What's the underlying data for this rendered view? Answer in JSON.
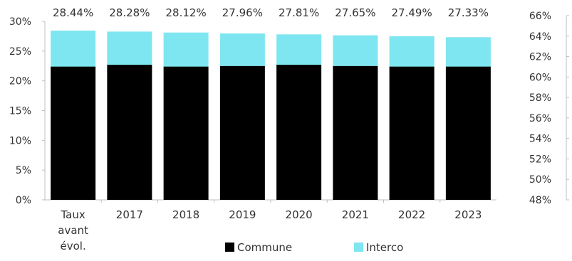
{
  "chart_data": {
    "type": "bar",
    "stacked": true,
    "categories": [
      "Taux avant évol.",
      "2017",
      "2018",
      "2019",
      "2020",
      "2021",
      "2022",
      "2023"
    ],
    "category_lines": [
      [
        "Taux",
        "avant",
        "évol."
      ],
      [
        "2017"
      ],
      [
        "2018"
      ],
      [
        "2019"
      ],
      [
        "2020"
      ],
      [
        "2021"
      ],
      [
        "2022"
      ],
      [
        "2023"
      ]
    ],
    "series": [
      {
        "name": "Commune",
        "color": "#000000",
        "values": [
          22.4,
          22.7,
          22.4,
          22.5,
          22.7,
          22.5,
          22.4,
          22.4
        ]
      },
      {
        "name": "Interco",
        "color": "#7ee6f0",
        "values": [
          6.04,
          5.58,
          5.72,
          5.46,
          5.11,
          5.15,
          5.09,
          4.93
        ]
      }
    ],
    "total_labels": [
      "28.44%",
      "28.28%",
      "28.12%",
      "27.96%",
      "27.81%",
      "27.65%",
      "27.49%",
      "27.33%"
    ],
    "y_left": {
      "min": 0,
      "max": 30,
      "ticks": [
        "0%",
        "5%",
        "10%",
        "15%",
        "20%",
        "25%",
        "30%"
      ]
    },
    "y_right": {
      "min": 48,
      "max": 66,
      "ticks": [
        "48%",
        "50%",
        "52%",
        "54%",
        "56%",
        "58%",
        "60%",
        "62%",
        "64%",
        "66%"
      ]
    },
    "legend": {
      "position": "bottom"
    },
    "grid": false
  }
}
